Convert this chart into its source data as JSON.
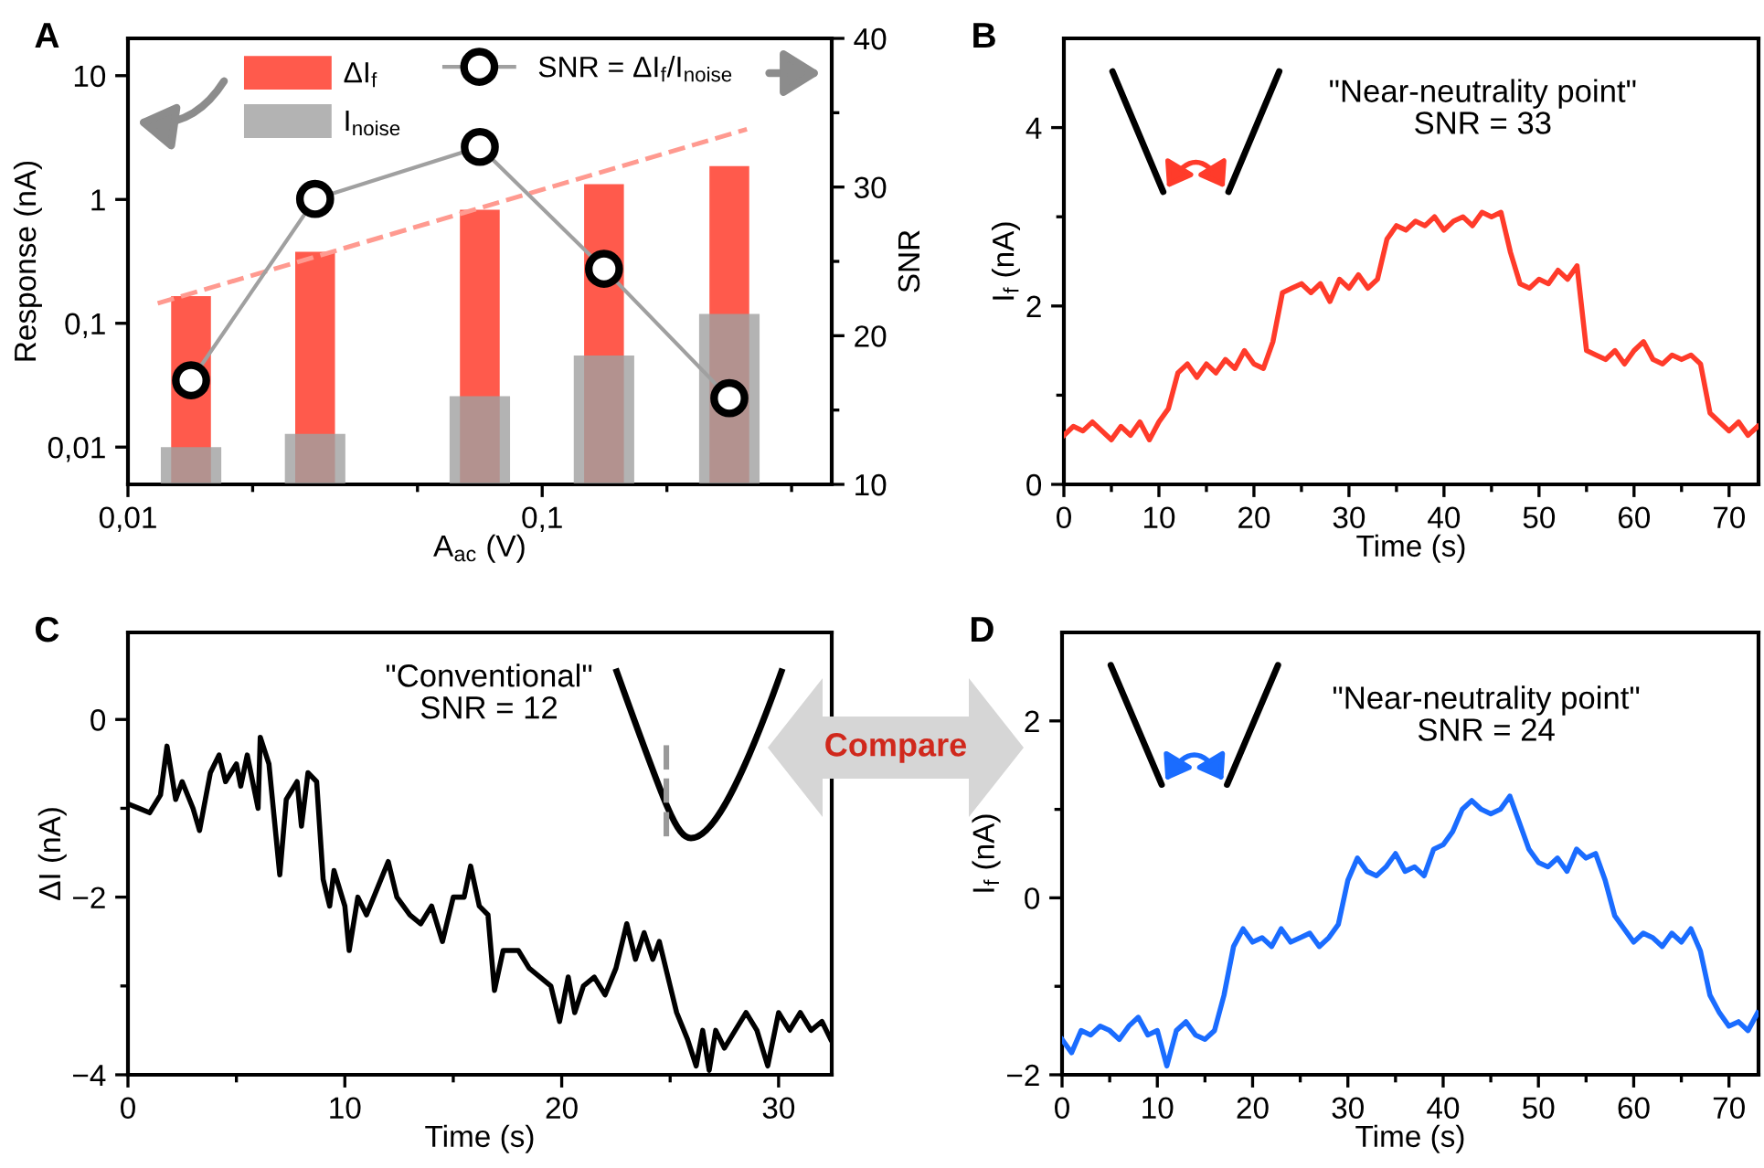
{
  "chart_data": [
    {
      "type": "bar",
      "title": "A",
      "xlabel": "A$_{ac}$ (V)",
      "ylabel": "Response (nA)",
      "y2label": "SNR",
      "log": "xy",
      "legend": "top",
      "xlim": [
        0.01,
        0.5
      ],
      "xticks": [
        {
          "value": 0.01,
          "label": "0,01"
        },
        {
          "value": 0.02,
          "label": null
        },
        {
          "value": 0.05,
          "label": null
        },
        {
          "value": 0.1,
          "label": "0,1"
        },
        {
          "value": 0.2,
          "label": null
        },
        {
          "value": 0.4,
          "label": null
        }
      ],
      "ylim": [
        0.005,
        20
      ],
      "yticks": [
        {
          "value": 0.01,
          "label": "0,01"
        },
        {
          "value": 0.1,
          "label": "0,1"
        },
        1,
        10
      ],
      "y2lim": [
        10,
        40
      ],
      "y2ticks": [
        10,
        {
          "value": 15,
          "label": null
        },
        20,
        {
          "value": 25,
          "label": null
        },
        30,
        {
          "value": 35,
          "label": null
        },
        40
      ],
      "series": [
        {
          "name": "ΔI$_{f}$",
          "type": "bar",
          "color": "#ff5a4c",
          "x": [
            0.0142,
            0.0283,
            0.0707,
            0.141,
            0.283
          ],
          "values": [
            0.166,
            0.378,
            0.826,
            1.33,
            1.86
          ]
        },
        {
          "name": "I$_{noise}$",
          "type": "bar",
          "color": "#a0a0a0",
          "x": [
            0.0142,
            0.0283,
            0.0707,
            0.141,
            0.283
          ],
          "values": [
            0.01,
            0.0128,
            0.0258,
            0.055,
            0.119
          ]
        },
        {
          "type": "line",
          "color": "#ff9a90",
          "line_style": "dashed",
          "x": [
            0.0118,
            0.312
          ],
          "values": [
            0.145,
            3.7
          ]
        },
        {
          "name": "SNR = ΔI$_{f}$/I$_{noise}$",
          "type": "line",
          "axis": "y2",
          "color": "#000000",
          "marker": "circle",
          "x": [
            0.0142,
            0.0283,
            0.0707,
            0.141,
            0.283
          ],
          "values": [
            17,
            29.2,
            32.7,
            24.5,
            15.8
          ]
        }
      ]
    },
    {
      "type": "line",
      "title": "B",
      "xlabel": "Time (s)",
      "ylabel": "I$_{f}$ (nA)",
      "annotations": [
        "\"Near-neutrality point\"\nSNR = 33"
      ],
      "xlim": [
        0,
        73.1
      ],
      "xticks": [
        0,
        {
          "value": 5,
          "label": null
        },
        10,
        {
          "value": 15,
          "label": null
        },
        20,
        {
          "value": 25,
          "label": null
        },
        30,
        {
          "value": 35,
          "label": null
        },
        40,
        {
          "value": 45,
          "label": null
        },
        50,
        {
          "value": 55,
          "label": null
        },
        60,
        {
          "value": 65,
          "label": null
        },
        70
      ],
      "ylim": [
        0,
        5
      ],
      "yticks": [
        0,
        {
          "value": 1,
          "label": null
        },
        2,
        {
          "value": 3,
          "label": null
        },
        4
      ],
      "series": [
        {
          "color": "#ff3b2a",
          "x": [
            0,
            1,
            2,
            3,
            4,
            5,
            6,
            7,
            8,
            9,
            10,
            11,
            12,
            13,
            14,
            15,
            16,
            17,
            18,
            19,
            20,
            21,
            22,
            23,
            24,
            25,
            26,
            27,
            28,
            29,
            30,
            31,
            32,
            33,
            34,
            35,
            36,
            37,
            38,
            39,
            40,
            41,
            42,
            43,
            44,
            45,
            46,
            47,
            48,
            49,
            50,
            51,
            52,
            53,
            54,
            55,
            56,
            57,
            58,
            59,
            60,
            61,
            62,
            63,
            64,
            65,
            66,
            67,
            68,
            69,
            70,
            71,
            72,
            73
          ],
          "values": [
            0.55,
            0.65,
            0.6,
            0.7,
            0.6,
            0.5,
            0.65,
            0.55,
            0.7,
            0.5,
            0.7,
            0.85,
            1.25,
            1.35,
            1.2,
            1.35,
            1.25,
            1.4,
            1.3,
            1.5,
            1.35,
            1.3,
            1.6,
            2.15,
            2.2,
            2.25,
            2.15,
            2.25,
            2.05,
            2.3,
            2.2,
            2.35,
            2.2,
            2.3,
            2.75,
            2.9,
            2.85,
            2.95,
            2.9,
            3.0,
            2.85,
            2.95,
            3.0,
            2.9,
            3.05,
            3.0,
            3.05,
            2.6,
            2.25,
            2.2,
            2.3,
            2.25,
            2.4,
            2.3,
            2.45,
            1.5,
            1.45,
            1.4,
            1.5,
            1.35,
            1.5,
            1.6,
            1.4,
            1.35,
            1.45,
            1.4,
            1.45,
            1.35,
            0.8,
            0.7,
            0.6,
            0.7,
            0.55,
            0.65
          ]
        }
      ]
    },
    {
      "type": "line",
      "title": "C",
      "xlabel": "Time (s)",
      "ylabel": "ΔI (nA)",
      "annotations": [
        "\"Conventional\"\nSNR = 12",
        "Compare"
      ],
      "xlim": [
        0,
        32.45
      ],
      "xticks": [
        0,
        {
          "value": 5,
          "label": null
        },
        10,
        {
          "value": 15,
          "label": null
        },
        20,
        {
          "value": 25,
          "label": null
        },
        30
      ],
      "ylim": [
        -4,
        0.98
      ],
      "yticks": [
        {
          "value": -4,
          "label": "−4"
        },
        {
          "value": -3,
          "label": null
        },
        {
          "value": -2,
          "label": "−2"
        },
        {
          "value": -1,
          "label": null
        },
        0
      ],
      "series": [
        {
          "color": "#000000",
          "x": [
            0,
            0.5,
            1,
            1.5,
            1.8,
            2.2,
            2.5,
            3,
            3.3,
            3.8,
            4.2,
            4.5,
            5,
            5.2,
            5.5,
            6,
            6.1,
            6.5,
            7,
            7.3,
            7.8,
            8,
            8.3,
            8.7,
            9,
            9.3,
            9.5,
            10,
            10.2,
            10.6,
            11,
            11.5,
            12,
            12.4,
            13,
            13.5,
            14,
            14.5,
            15,
            15.5,
            15.8,
            16.2,
            16.6,
            16.9,
            17.3,
            18,
            18.5,
            19,
            19.5,
            19.9,
            20.3,
            20.6,
            21,
            21.5,
            22,
            22.5,
            23,
            23.4,
            23.8,
            24.2,
            24.5,
            25,
            25.3,
            25.8,
            26.2,
            26.5,
            26.8,
            27.1,
            27.5,
            28,
            28.5,
            29,
            29.5,
            30,
            30.5,
            31,
            31.5,
            32,
            32.4
          ],
          "values": [
            -0.95,
            -1.0,
            -1.05,
            -0.85,
            -0.3,
            -0.9,
            -0.7,
            -1.0,
            -1.25,
            -0.6,
            -0.4,
            -0.7,
            -0.5,
            -0.75,
            -0.4,
            -1.0,
            -0.2,
            -0.5,
            -1.75,
            -0.9,
            -0.7,
            -1.2,
            -0.6,
            -0.7,
            -1.8,
            -2.1,
            -1.7,
            -2.1,
            -2.6,
            -2.0,
            -2.2,
            -1.9,
            -1.6,
            -2.0,
            -2.2,
            -2.3,
            -2.1,
            -2.5,
            -2.0,
            -2.0,
            -1.65,
            -2.1,
            -2.2,
            -3.05,
            -2.6,
            -2.6,
            -2.8,
            -2.9,
            -3.0,
            -3.4,
            -2.9,
            -3.3,
            -3.0,
            -2.9,
            -3.1,
            -2.8,
            -2.3,
            -2.7,
            -2.4,
            -2.7,
            -2.5,
            -3.0,
            -3.3,
            -3.6,
            -3.9,
            -3.5,
            -3.95,
            -3.5,
            -3.7,
            -3.5,
            -3.3,
            -3.5,
            -3.9,
            -3.3,
            -3.5,
            -3.3,
            -3.5,
            -3.4,
            -3.6
          ]
        }
      ]
    },
    {
      "type": "line",
      "title": "D",
      "xlabel": "Time (s)",
      "ylabel": "I$_{f}$ (nA)",
      "annotations": [
        "\"Near-neutrality point\"\nSNR = 24"
      ],
      "xlim": [
        0,
        73.1
      ],
      "xticks": [
        0,
        {
          "value": 5,
          "label": null
        },
        10,
        {
          "value": 15,
          "label": null
        },
        20,
        {
          "value": 25,
          "label": null
        },
        30,
        {
          "value": 35,
          "label": null
        },
        40,
        {
          "value": 45,
          "label": null
        },
        50,
        {
          "value": 55,
          "label": null
        },
        60,
        {
          "value": 65,
          "label": null
        },
        70
      ],
      "ylim": [
        -2,
        3
      ],
      "yticks": [
        {
          "value": -2,
          "label": "−2"
        },
        {
          "value": -1,
          "label": null
        },
        0,
        {
          "value": 1,
          "label": null
        },
        2
      ],
      "series": [
        {
          "color": "#1a6cff",
          "x": [
            0,
            1,
            2,
            3,
            4,
            5,
            6,
            7,
            8,
            9,
            10,
            11,
            12,
            13,
            14,
            15,
            16,
            17,
            18,
            19,
            20,
            21,
            22,
            23,
            24,
            25,
            26,
            27,
            28,
            29,
            30,
            31,
            32,
            33,
            34,
            35,
            36,
            37,
            38,
            39,
            40,
            41,
            42,
            43,
            44,
            45,
            46,
            47,
            48,
            49,
            50,
            51,
            52,
            53,
            54,
            55,
            56,
            57,
            58,
            59,
            60,
            61,
            62,
            63,
            64,
            65,
            66,
            67,
            68,
            69,
            70,
            71,
            72,
            73
          ],
          "values": [
            -1.6,
            -1.75,
            -1.5,
            -1.55,
            -1.45,
            -1.5,
            -1.6,
            -1.45,
            -1.35,
            -1.55,
            -1.5,
            -1.9,
            -1.5,
            -1.4,
            -1.55,
            -1.6,
            -1.5,
            -1.1,
            -0.55,
            -0.35,
            -0.5,
            -0.45,
            -0.55,
            -0.35,
            -0.5,
            -0.45,
            -0.4,
            -0.55,
            -0.45,
            -0.3,
            0.2,
            0.45,
            0.3,
            0.25,
            0.35,
            0.5,
            0.3,
            0.35,
            0.25,
            0.55,
            0.6,
            0.75,
            1.0,
            1.1,
            1.0,
            0.95,
            1.0,
            1.15,
            0.85,
            0.55,
            0.4,
            0.35,
            0.45,
            0.3,
            0.55,
            0.45,
            0.5,
            0.2,
            -0.2,
            -0.35,
            -0.5,
            -0.4,
            -0.45,
            -0.55,
            -0.4,
            -0.5,
            -0.35,
            -0.6,
            -1.1,
            -1.3,
            -1.45,
            -1.4,
            -1.5,
            -1.3
          ]
        }
      ]
    }
  ]
}
